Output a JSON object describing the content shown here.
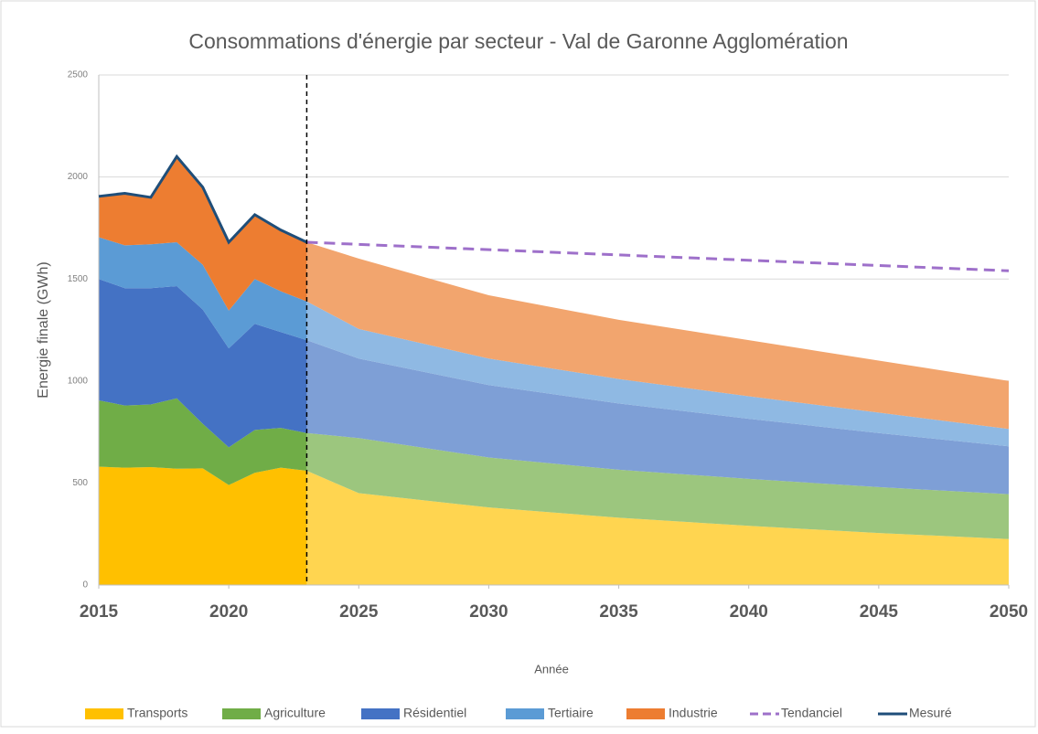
{
  "chart_data": {
    "type": "stacked_area",
    "title": "Consommations d'énergie par secteur - Val de Garonne Agglomération",
    "x_label": "Année",
    "y_label": "Energie finale (GWh)",
    "xlim": [
      2015,
      2050
    ],
    "xticks": [
      2015,
      2020,
      2025,
      2030,
      2035,
      2040,
      2045,
      2050
    ],
    "ylim": [
      0,
      2500
    ],
    "yticks": [
      0,
      500,
      1000,
      1500,
      2000,
      2500
    ],
    "grid": true,
    "marker_x": 2023,
    "x": [
      2015,
      2016,
      2017,
      2018,
      2019,
      2020,
      2021,
      2022,
      2023
    ],
    "series": [
      {
        "name": "Transports",
        "color": "#ffc000",
        "values": [
          580,
          575,
          578,
          570,
          572,
          490,
          550,
          575,
          560
        ]
      },
      {
        "name": "Agriculture",
        "color": "#70ad47",
        "values": [
          325,
          305,
          307,
          345,
          218,
          185,
          210,
          195,
          185
        ]
      },
      {
        "name": "Résidentiel",
        "color": "#4472c4",
        "values": [
          595,
          575,
          570,
          550,
          560,
          485,
          520,
          470,
          455
        ]
      },
      {
        "name": "Tertiaire",
        "color": "#5b9bd5",
        "values": [
          205,
          210,
          215,
          215,
          220,
          185,
          220,
          200,
          190
        ]
      },
      {
        "name": "Industrie",
        "color": "#ed7d31",
        "values": [
          200,
          255,
          230,
          420,
          380,
          335,
          315,
          300,
          290
        ]
      }
    ],
    "projection": {
      "x": [
        2023,
        2025,
        2030,
        2035,
        2040,
        2045,
        2050
      ],
      "series": [
        {
          "color": "#ffd550",
          "values": [
            560,
            450,
            380,
            330,
            290,
            255,
            225
          ]
        },
        {
          "color": "#9cc67e",
          "values": [
            185,
            270,
            245,
            235,
            230,
            225,
            220
          ]
        },
        {
          "color": "#7e9fd6",
          "values": [
            455,
            390,
            355,
            325,
            295,
            265,
            235
          ]
        },
        {
          "color": "#8fb9e3",
          "values": [
            190,
            145,
            130,
            120,
            110,
            100,
            85
          ]
        },
        {
          "color": "#f2a56e",
          "values": [
            290,
            345,
            310,
            290,
            275,
            255,
            235
          ]
        }
      ]
    },
    "lines": [
      {
        "name": "Tendanciel",
        "color": "#9e70ca",
        "dashed": true,
        "x": [
          2023,
          2050
        ],
        "values": [
          1680,
          1540
        ]
      },
      {
        "name": "Mesuré",
        "color": "#1f4e79",
        "dashed": false,
        "x": [
          2015,
          2016,
          2017,
          2018,
          2019,
          2020,
          2021,
          2022,
          2023
        ],
        "values": [
          1905,
          1920,
          1900,
          2100,
          1950,
          1680,
          1815,
          1740,
          1680
        ]
      }
    ]
  }
}
